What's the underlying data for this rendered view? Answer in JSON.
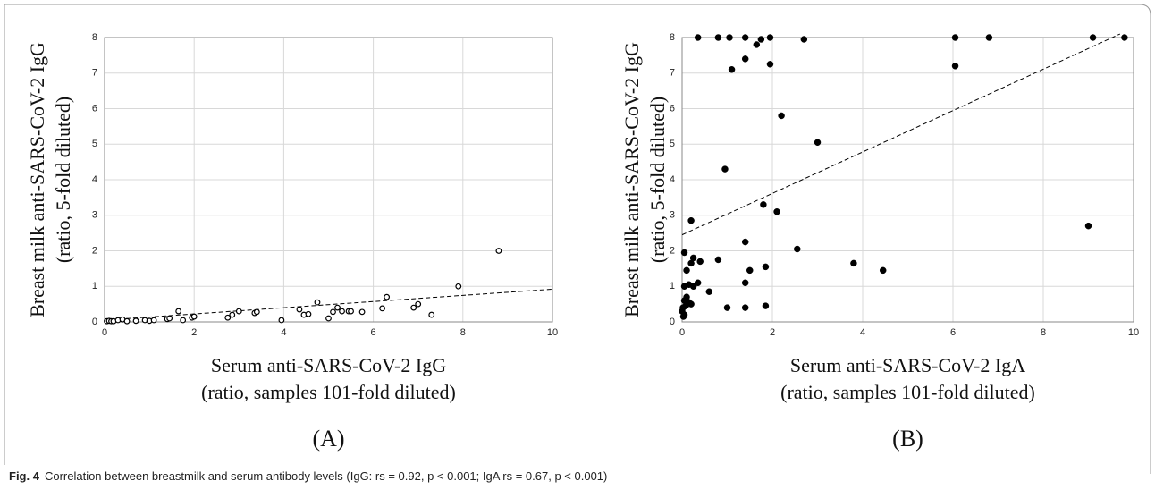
{
  "chart_data": [
    {
      "type": "scatter",
      "panel": "(A)",
      "marker": "open",
      "color": "#000000",
      "y_label": [
        "Breast milk anti-SARS-CoV-2 IgG",
        "(ratio, 5-fold diluted)"
      ],
      "x_label": [
        "Serum anti-SARS-CoV-2 IgG",
        "(ratio, samples 101-fold diluted)"
      ],
      "xlim": [
        0,
        10
      ],
      "ylim": [
        0,
        8
      ],
      "xticks": [
        0,
        2,
        4,
        6,
        8,
        10
      ],
      "yticks": [
        0,
        1,
        2,
        3,
        4,
        5,
        6,
        7,
        8
      ],
      "grid": true,
      "x": [
        0.05,
        0.1,
        0.15,
        0.2,
        0.3,
        0.4,
        0.5,
        0.7,
        0.9,
        1.0,
        1.1,
        1.4,
        1.45,
        1.65,
        1.75,
        1.95,
        2.0,
        2.75,
        2.85,
        3.0,
        3.35,
        3.4,
        3.95,
        4.35,
        4.45,
        4.55,
        4.75,
        5.0,
        5.1,
        5.2,
        5.3,
        5.45,
        5.5,
        5.75,
        6.2,
        6.3,
        6.9,
        7.0,
        7.3,
        7.9,
        8.8
      ],
      "y": [
        0.02,
        0.03,
        0.02,
        0.02,
        0.05,
        0.07,
        0.02,
        0.03,
        0.05,
        0.03,
        0.05,
        0.08,
        0.1,
        0.3,
        0.05,
        0.12,
        0.15,
        0.12,
        0.2,
        0.3,
        0.25,
        0.28,
        0.05,
        0.35,
        0.2,
        0.22,
        0.55,
        0.1,
        0.28,
        0.4,
        0.3,
        0.3,
        0.3,
        0.28,
        0.38,
        0.7,
        0.4,
        0.5,
        0.2,
        1.0,
        2.0
      ],
      "fit_line": {
        "x": [
          0,
          10
        ],
        "y": [
          0.05,
          0.92
        ]
      }
    },
    {
      "type": "scatter",
      "panel": "(B)",
      "marker": "filled",
      "color": "#000000",
      "y_label": [
        "Breast milk anti-SARS-CoV-2 IgG",
        "(ratio, 5-fold diluted)"
      ],
      "x_label": [
        "Serum anti-SARS-CoV-2 IgA",
        "(ratio, samples 101-fold diluted)"
      ],
      "xlim": [
        0,
        10
      ],
      "ylim": [
        0,
        8
      ],
      "xticks": [
        0,
        2,
        4,
        6,
        8,
        10
      ],
      "yticks": [
        0,
        1,
        2,
        3,
        4,
        5,
        6,
        7,
        8
      ],
      "grid": true,
      "x": [
        0.35,
        1.05,
        1.4,
        0.8,
        1.75,
        1.95,
        2.7,
        6.05,
        6.8,
        9.1,
        9.8,
        1.65,
        1.4,
        1.1,
        1.95,
        6.05,
        2.2,
        3.0,
        0.95,
        1.8,
        2.1,
        0.2,
        9.0,
        1.4,
        2.55,
        0.05,
        0.25,
        0.2,
        0.4,
        0.8,
        3.8,
        4.45,
        1.85,
        1.5,
        0.1,
        0.6,
        1.4,
        0.05,
        0.15,
        0.25,
        0.35,
        0.05,
        0.1,
        0.15,
        0.2,
        0.0,
        0.05,
        0.02,
        0.08,
        1.0,
        1.4,
        1.85,
        0.03
      ],
      "y": [
        8,
        8,
        8,
        8,
        7.95,
        8,
        7.95,
        8,
        8,
        8,
        8,
        7.8,
        7.4,
        7.1,
        7.25,
        7.2,
        5.8,
        5.05,
        4.3,
        3.3,
        3.1,
        2.85,
        2.7,
        2.25,
        2.05,
        1.95,
        1.8,
        1.65,
        1.7,
        1.75,
        1.65,
        1.45,
        1.55,
        1.45,
        1.45,
        0.85,
        1.1,
        1.0,
        1.05,
        1.0,
        1.1,
        0.6,
        0.7,
        0.55,
        0.5,
        0.3,
        0.2,
        0.4,
        0.45,
        0.4,
        0.4,
        0.45,
        0.15
      ],
      "fit_line": {
        "x": [
          0,
          9.7
        ],
        "y": [
          2.45,
          8.1
        ]
      }
    }
  ],
  "caption_label": "Fig. 4",
  "caption": "Correlation between breastmilk and serum antibody levels (IgG: rs = 0.92, p < 0.001; IgA rs = 0.67, p < 0.001)"
}
